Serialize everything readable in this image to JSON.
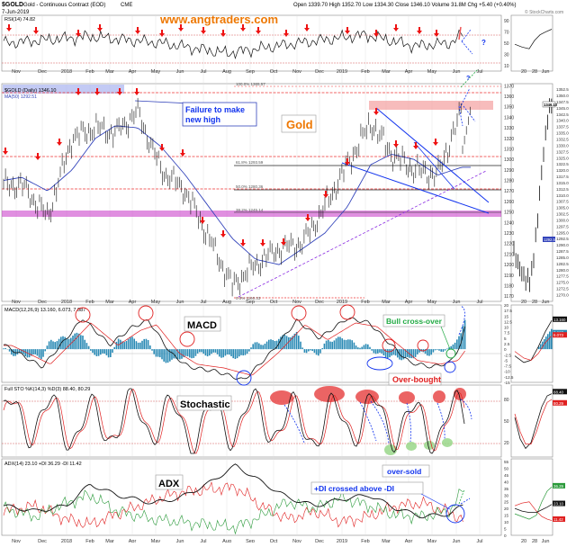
{
  "header": {
    "symbol": "$GOLD",
    "name": "Gold - Continuous Contract (EOD)",
    "exchange": "CME",
    "date": "7-Jun-2019",
    "quote": "Open 1339.70  High 1352.70  Low 1334.30  Close 1346.10  Volume 31.8M  Chg +5.40 (+0.40%)",
    "source": "© StockCharts.com",
    "website": "www.angtraders.com"
  },
  "months": [
    "Nov",
    "Dec",
    "2018",
    "Feb",
    "Mar",
    "Apr",
    "May",
    "Jun",
    "Jul",
    "Aug",
    "Sep",
    "Oct",
    "Nov",
    "Dec",
    "2019",
    "Feb",
    "Mar",
    "Apr",
    "May",
    "Jun",
    "Jul"
  ],
  "side_months": [
    "20",
    "28",
    "Jun"
  ],
  "panels": {
    "rsi": {
      "label": "RSI(14) 74.82",
      "ticks": [
        "90",
        "70",
        "50",
        "30",
        "10"
      ]
    },
    "price": {
      "legend1": "$GOLD (Daily) 1346.10",
      "legend2": "MA(50) 1292.51",
      "ticks": [
        "1370",
        "1360",
        "1350",
        "1340",
        "1330",
        "1320",
        "1310",
        "1300",
        "1290",
        "1280",
        "1270",
        "1260",
        "1250",
        "1240",
        "1230",
        "1220",
        "1210",
        "1200",
        "1190",
        "1180",
        "1170"
      ],
      "side_ticks": [
        "1352.5",
        "1350.0",
        "1347.5",
        "1345.0",
        "1342.5",
        "1340.0",
        "1337.5",
        "1335.0",
        "1332.5",
        "1330.0",
        "1327.5",
        "1325.0",
        "1322.5",
        "1320.0",
        "1317.5",
        "1315.0",
        "1312.5",
        "1310.0",
        "1307.5",
        "1305.0",
        "1302.5",
        "1300.0",
        "1297.5",
        "1295.0",
        "1292.5",
        "1290.0",
        "1287.5",
        "1285.0",
        "1282.5",
        "1280.0",
        "1277.5",
        "1275.0",
        "1272.5",
        "1270.0"
      ],
      "fib_labels": [
        "61.8% 1293.59",
        "50.0% 1280.36",
        "38.2% 1245.14",
        "0.0% 1160.33",
        "100.0% 1365.57"
      ],
      "price_tag": "1346.10",
      "ma_tag": "1292.51"
    },
    "macd": {
      "label": "MACD(12,26,9) 13.160, 6.073, 7.087",
      "ticks": [
        "20",
        "17.5",
        "15",
        "12.5",
        "10",
        "7.5",
        "5",
        "2.5",
        "0",
        "-2.5",
        "-5",
        "-7.5",
        "-10",
        "-12.5",
        "-15"
      ],
      "tags": [
        "13.160",
        "7.087",
        "6.073"
      ]
    },
    "sto": {
      "label": "Full STO %K(14,3) %D(3) 88.40, 80.29",
      "ticks": [
        "80",
        "50",
        "20"
      ],
      "tags": [
        "88.40",
        "80.29"
      ]
    },
    "adx": {
      "label": "ADX(14) 23.10  +DI 36.29  -DI 11.42",
      "ticks": [
        "55",
        "50",
        "45",
        "40",
        "35",
        "30",
        "25",
        "20",
        "15",
        "10",
        "5",
        "0"
      ],
      "tags": [
        "36.29",
        "23.10",
        "11.42"
      ]
    }
  },
  "annotations": {
    "failure": "Failure to make new high",
    "gold": "Gold",
    "macd": "MACD",
    "bull_cross": "Bull cross-over",
    "stochastic": "Stochastic",
    "overbought": "Over-bought",
    "oversold": "over-sold",
    "adx": "ADX",
    "di_cross": "+DI crossed above -DI",
    "q1": "?",
    "q2": "?"
  },
  "colors": {
    "price": "#000000",
    "ma": "#3344bb",
    "signal": "#e02020",
    "histogram": "#2a8ab5",
    "arrow": "#ee1111",
    "annotation": "#1133ee",
    "highlight_purple": "#cc44cc",
    "highlight_red": "#f4a0a0",
    "band_blue": "#aab4f0",
    "web_orange": "#ee7700"
  },
  "chart_data": {
    "type": "line",
    "title": "$GOLD Gold - Continuous Contract (EOD) CME",
    "xlabel": "",
    "ylabel": "",
    "ylim": [
      1165,
      1372
    ],
    "x": [
      "Nov 2017",
      "Dec 2017",
      "Jan 2018",
      "Feb 2018",
      "Mar 2018",
      "Apr 2018",
      "May 2018",
      "Jun 2018",
      "Jul 2018",
      "Aug 2018",
      "Sep 2018",
      "Oct 2018",
      "Nov 2018",
      "Dec 2018",
      "Jan 2019",
      "Feb 2019",
      "Mar 2019",
      "Apr 2019",
      "May 2019",
      "Jun 2019"
    ],
    "series": [
      {
        "name": "$GOLD (Daily)",
        "values": [
          1276,
          1245,
          1320,
          1330,
          1325,
          1345,
          1290,
          1270,
          1225,
          1180,
          1200,
          1215,
          1220,
          1255,
          1295,
          1335,
          1305,
          1290,
          1285,
          1346
        ]
      },
      {
        "name": "MA(50)",
        "values": [
          1283,
          1270,
          1290,
          1320,
          1332,
          1330,
          1312,
          1285,
          1255,
          1225,
          1205,
          1200,
          1215,
          1230,
          1255,
          1295,
          1305,
          1300,
          1285,
          1292.51
        ]
      }
    ]
  }
}
